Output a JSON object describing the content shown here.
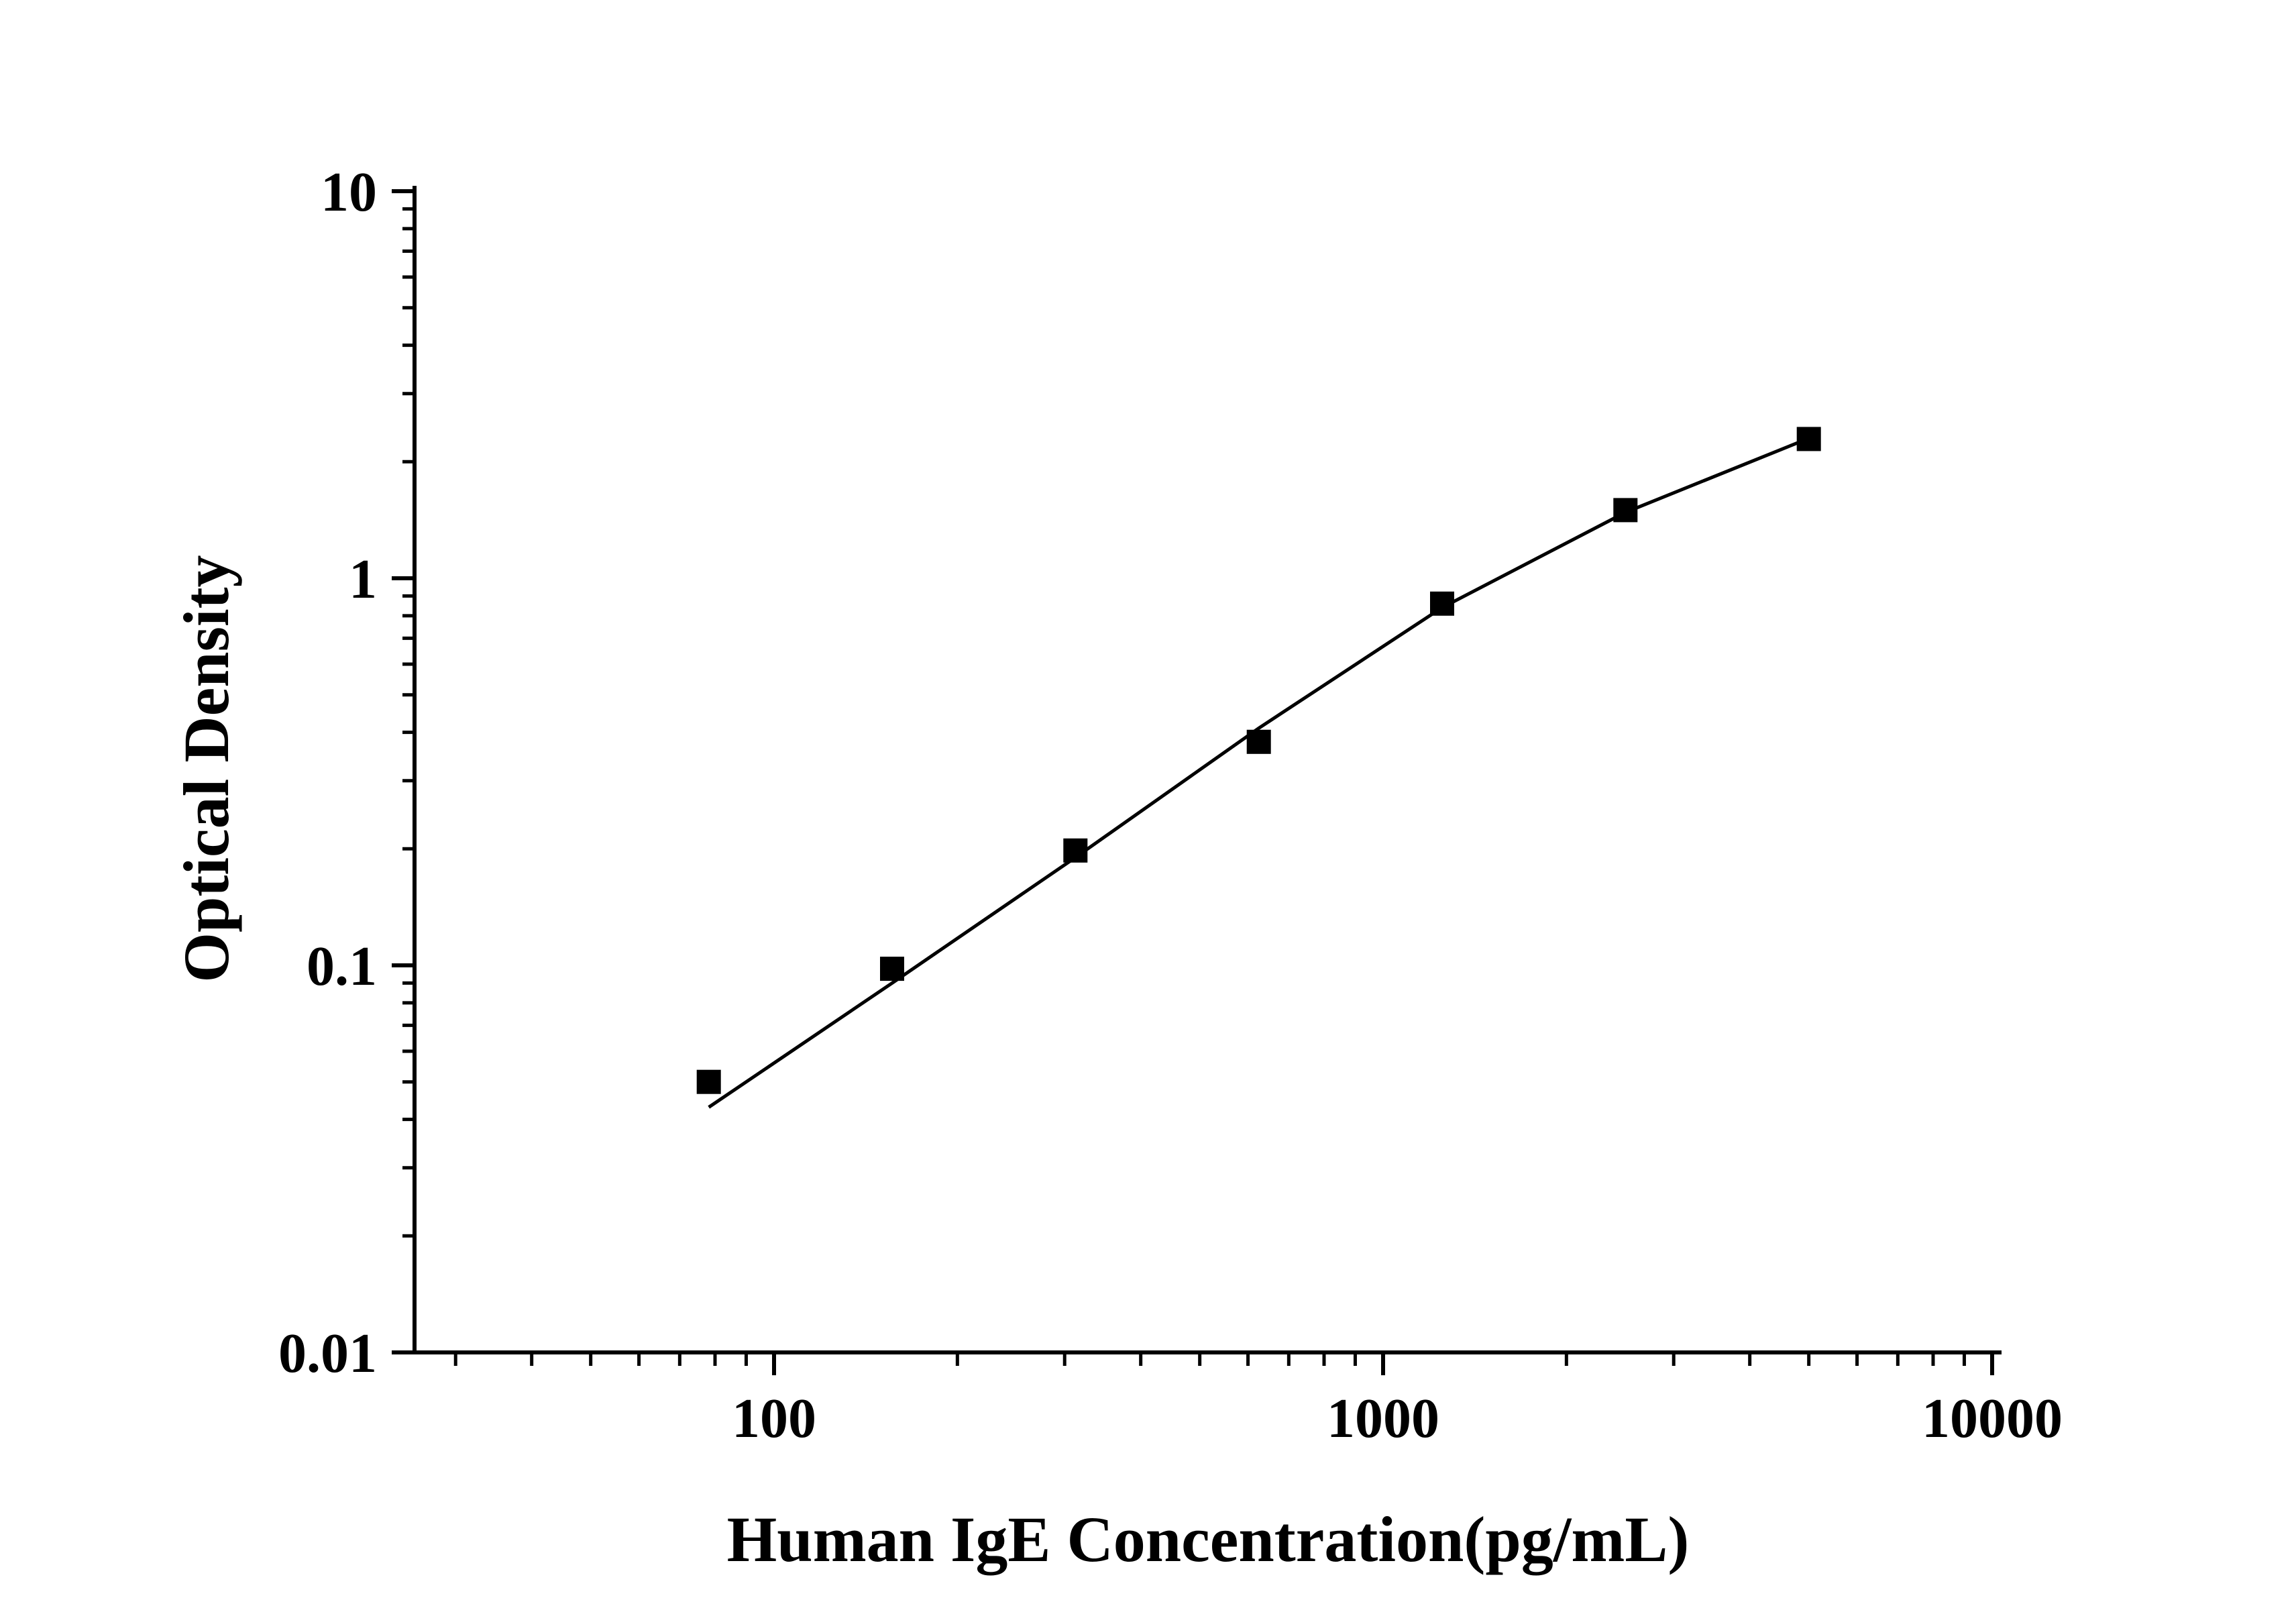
{
  "chart_data": {
    "type": "scatter",
    "title": "",
    "xlabel": "Human IgE Concentration(pg/mL)",
    "ylabel": "Optical Density",
    "x_scale": "log",
    "y_scale": "log",
    "xlim": [
      25,
      10000
    ],
    "ylim": [
      0.01,
      10
    ],
    "x_ticks": [
      {
        "value": 100,
        "label": "100"
      },
      {
        "value": 1000,
        "label": "1000"
      },
      {
        "value": 10000,
        "label": "10000"
      }
    ],
    "y_ticks": [
      {
        "value": 0.01,
        "label": "0.01"
      },
      {
        "value": 0.1,
        "label": "0.1"
      },
      {
        "value": 1,
        "label": "1"
      },
      {
        "value": 10,
        "label": "10"
      }
    ],
    "grid": false,
    "legend": "none",
    "series": [
      {
        "marker": "square",
        "color": "#000000",
        "x": [
          78.125,
          156.25,
          312.5,
          625,
          1250,
          2500,
          5000
        ],
        "y": [
          0.05,
          0.098,
          0.198,
          0.378,
          0.86,
          1.5,
          2.29
        ]
      }
    ],
    "fit_line": {
      "color": "#000000",
      "x": [
        78.125,
        156.25,
        312.5,
        625,
        1250,
        2500,
        5000
      ],
      "y": [
        0.043,
        0.09,
        0.19,
        0.41,
        0.84,
        1.48,
        2.3
      ]
    }
  }
}
